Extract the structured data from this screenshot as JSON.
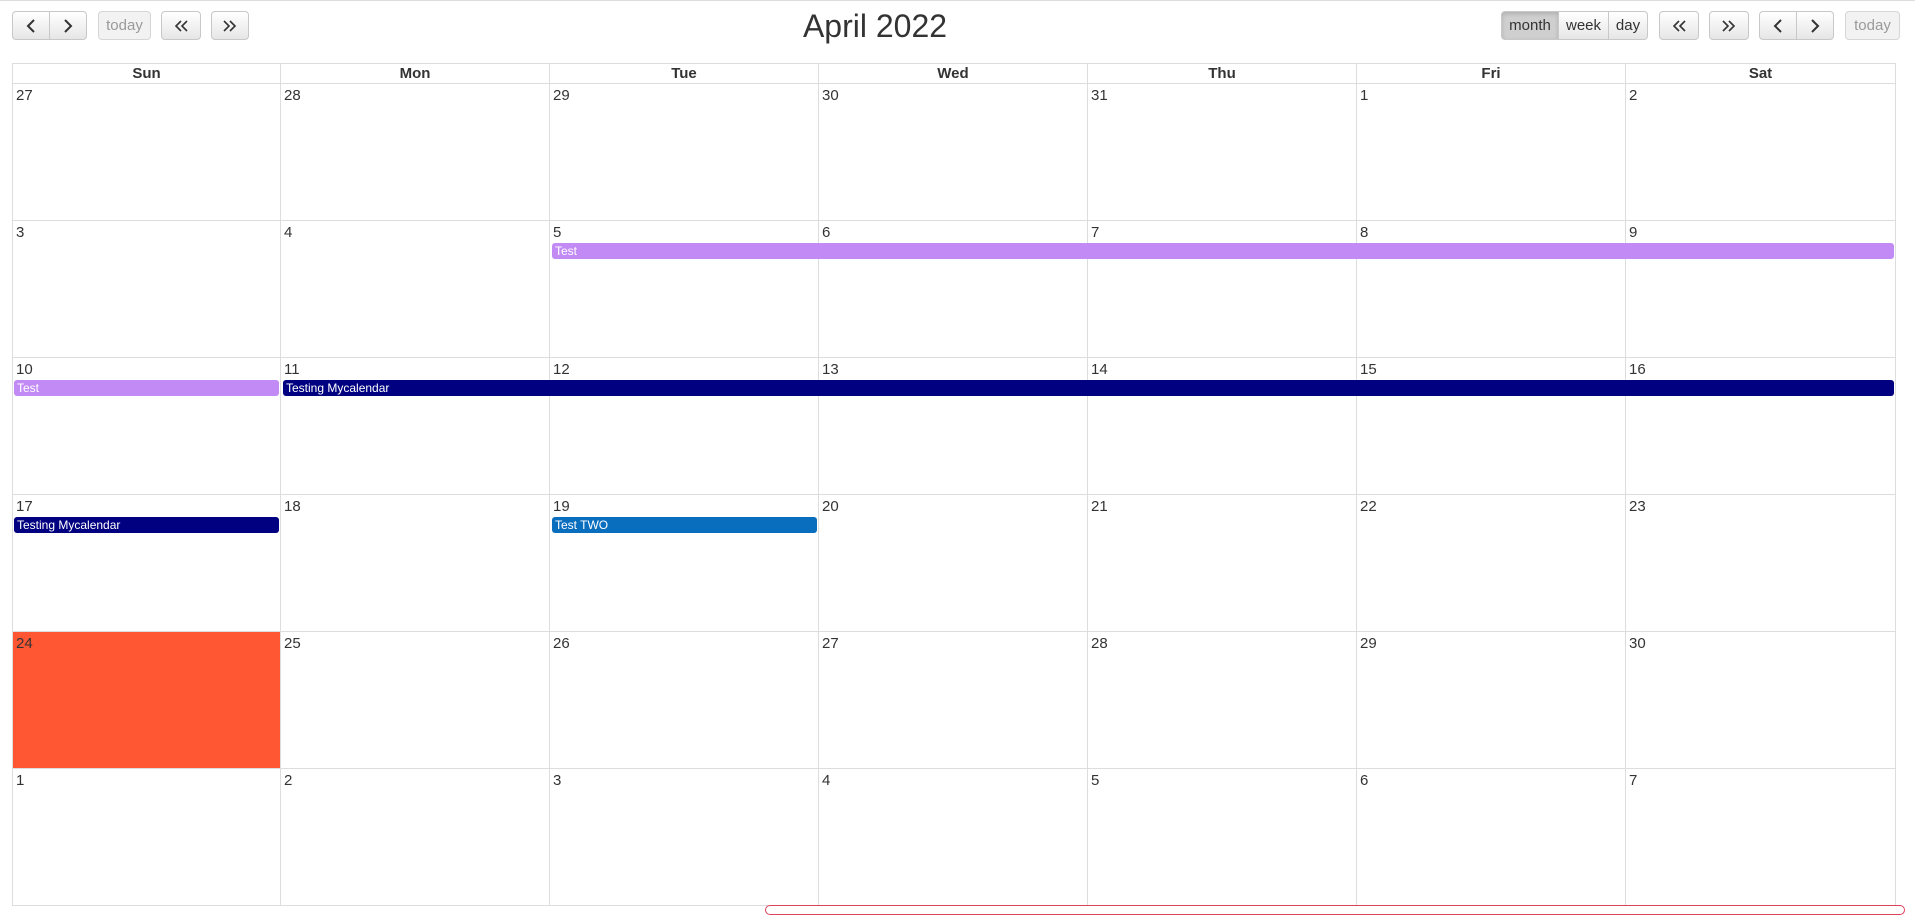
{
  "toolbar": {
    "today_label": "today",
    "month_label": "month",
    "week_label": "week",
    "day_label": "day",
    "title": "April 2022"
  },
  "icons": {
    "prev": "chevron-left-icon",
    "next": "chevron-right-icon",
    "prev_year": "double-chevron-left-icon",
    "next_year": "double-chevron-right-icon"
  },
  "weekdays": [
    "Sun",
    "Mon",
    "Tue",
    "Wed",
    "Thu",
    "Fri",
    "Sat"
  ],
  "weeks": [
    [
      "27",
      "28",
      "29",
      "30",
      "31",
      "1",
      "2"
    ],
    [
      "3",
      "4",
      "5",
      "6",
      "7",
      "8",
      "9"
    ],
    [
      "10",
      "11",
      "12",
      "13",
      "14",
      "15",
      "16"
    ],
    [
      "17",
      "18",
      "19",
      "20",
      "21",
      "22",
      "23"
    ],
    [
      "24",
      "25",
      "26",
      "27",
      "28",
      "29",
      "30"
    ],
    [
      "1",
      "2",
      "3",
      "4",
      "5",
      "6",
      "7"
    ]
  ],
  "today_cell": {
    "week": 4,
    "day": 0
  },
  "colors": {
    "today": "#ff5733",
    "test_event": "#c28af5",
    "testing_mycalendar_event": "#000080",
    "test_two_event": "#0a6ebf"
  },
  "events": [
    {
      "title": "Test",
      "week": 1,
      "start_day": 2,
      "end_day": 6,
      "color": "#c28af5"
    },
    {
      "title": "Test",
      "week": 2,
      "start_day": 0,
      "end_day": 0,
      "color": "#c28af5"
    },
    {
      "title": "Testing Mycalendar",
      "week": 2,
      "start_day": 1,
      "end_day": 6,
      "color": "#000080"
    },
    {
      "title": "Testing Mycalendar",
      "week": 3,
      "start_day": 0,
      "end_day": 0,
      "color": "#000080"
    },
    {
      "title": "Test TWO",
      "week": 3,
      "start_day": 2,
      "end_day": 2,
      "color": "#0a6ebf"
    }
  ]
}
